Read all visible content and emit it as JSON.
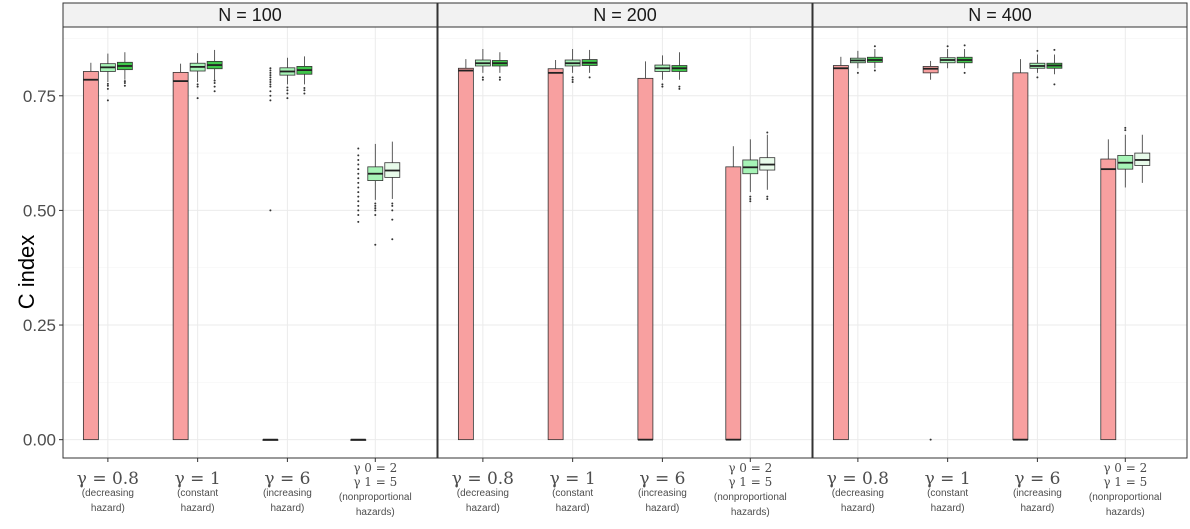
{
  "chart_data": {
    "type": "box",
    "ylabel": "C index",
    "ylim": [
      -0.04,
      0.9
    ],
    "yticks": [
      "0.00",
      "0.25",
      "0.50",
      "0.75"
    ],
    "ytick_values": [
      0,
      0.25,
      0.5,
      0.75
    ],
    "grid": true,
    "colors": {
      "cox": "#f8a0a0",
      "light_green": "#a6f4b6",
      "dark_green": "#3fc64a",
      "outline": "#333333"
    },
    "categories": [
      {
        "lines": [
          "γ = 0.8",
          "(decreasing",
          "hazard)"
        ]
      },
      {
        "lines": [
          "γ = 1",
          "(constant",
          "hazard)"
        ]
      },
      {
        "lines": [
          "γ = 6",
          "(increasing",
          "hazard)"
        ]
      },
      {
        "lines": [
          "γ 0 = 2",
          "γ 1 = 5",
          "(nonproportional",
          "hazards)"
        ]
      }
    ],
    "panels": [
      {
        "title": "N = 100",
        "groups": [
          {
            "boxes": [
              {
                "fill": "cox",
                "q1": 0,
                "median": 0.785,
                "q3": 0.803,
                "lo": 0,
                "hi": 0.822,
                "outliers": []
              },
              {
                "fill": "light_green",
                "q1": 0.803,
                "median": 0.812,
                "q3": 0.82,
                "lo": 0.78,
                "hi": 0.842,
                "outliers": [
                  0.74,
                  0.765,
                  0.772,
                  0.776
                ]
              },
              {
                "fill": "dark_green",
                "q1": 0.807,
                "median": 0.815,
                "q3": 0.823,
                "lo": 0.785,
                "hi": 0.845,
                "outliers": [
                  0.772,
                  0.778,
                  0.782
                ]
              }
            ]
          },
          {
            "boxes": [
              {
                "fill": "cox",
                "q1": 0,
                "median": 0.782,
                "q3": 0.801,
                "lo": 0,
                "hi": 0.82,
                "outliers": []
              },
              {
                "fill": "light_green",
                "q1": 0.804,
                "median": 0.813,
                "q3": 0.821,
                "lo": 0.78,
                "hi": 0.843,
                "outliers": [
                  0.745,
                  0.77,
                  0.775
                ]
              },
              {
                "fill": "dark_green",
                "q1": 0.809,
                "median": 0.817,
                "q3": 0.825,
                "lo": 0.785,
                "hi": 0.85,
                "outliers": [
                  0.76,
                  0.77,
                  0.778,
                  0.783
                ]
              }
            ]
          },
          {
            "boxes": [
              {
                "fill": "cox",
                "q1": 0,
                "median": 0,
                "q3": 0,
                "lo": 0,
                "hi": 0,
                "outliers": [
                  0.5,
                  0.74,
                  0.75,
                  0.76,
                  0.77,
                  0.775,
                  0.78,
                  0.785,
                  0.79,
                  0.795,
                  0.8,
                  0.805,
                  0.81
                ]
              },
              {
                "fill": "light_green",
                "q1": 0.795,
                "median": 0.803,
                "q3": 0.811,
                "lo": 0.775,
                "hi": 0.833,
                "outliers": [
                  0.745,
                  0.755,
                  0.762,
                  0.768
                ]
              },
              {
                "fill": "dark_green",
                "q1": 0.797,
                "median": 0.806,
                "q3": 0.814,
                "lo": 0.775,
                "hi": 0.836,
                "outliers": [
                  0.755,
                  0.762,
                  0.767
                ]
              }
            ]
          },
          {
            "boxes": [
              {
                "fill": "cox",
                "q1": 0,
                "median": 0,
                "q3": 0,
                "lo": 0,
                "hi": 0,
                "outliers": [
                  0.475,
                  0.49,
                  0.5,
                  0.51,
                  0.52,
                  0.53,
                  0.54,
                  0.55,
                  0.56,
                  0.57,
                  0.58,
                  0.59,
                  0.6,
                  0.61,
                  0.62,
                  0.635
                ]
              },
              {
                "fill": "light_green",
                "q1": 0.565,
                "median": 0.58,
                "q3": 0.595,
                "lo": 0.523,
                "hi": 0.645,
                "outliers": [
                  0.425,
                  0.49,
                  0.5,
                  0.505,
                  0.51,
                  0.515
                ]
              },
              {
                "fill": "dark_green_light",
                "q1": 0.572,
                "median": 0.587,
                "q3": 0.604,
                "lo": 0.525,
                "hi": 0.65,
                "outliers": [
                  0.437,
                  0.48,
                  0.5,
                  0.51,
                  0.515
                ]
              }
            ]
          }
        ]
      },
      {
        "title": "N = 200",
        "groups": [
          {
            "boxes": [
              {
                "fill": "cox",
                "q1": 0,
                "median": 0.805,
                "q3": 0.81,
                "lo": 0,
                "hi": 0.83,
                "outliers": []
              },
              {
                "fill": "light_green",
                "q1": 0.815,
                "median": 0.821,
                "q3": 0.828,
                "lo": 0.8,
                "hi": 0.852,
                "outliers": [
                  0.785,
                  0.79
                ]
              },
              {
                "fill": "dark_green",
                "q1": 0.815,
                "median": 0.821,
                "q3": 0.827,
                "lo": 0.8,
                "hi": 0.845,
                "outliers": [
                  0.785,
                  0.79
                ]
              }
            ]
          },
          {
            "boxes": [
              {
                "fill": "cox",
                "q1": 0,
                "median": 0.8,
                "q3": 0.809,
                "lo": 0,
                "hi": 0.828,
                "outliers": []
              },
              {
                "fill": "light_green",
                "q1": 0.815,
                "median": 0.821,
                "q3": 0.828,
                "lo": 0.8,
                "hi": 0.852,
                "outliers": [
                  0.78,
                  0.785,
                  0.79
                ]
              },
              {
                "fill": "dark_green",
                "q1": 0.816,
                "median": 0.822,
                "q3": 0.829,
                "lo": 0.8,
                "hi": 0.85,
                "outliers": [
                  0.79
                ]
              }
            ]
          },
          {
            "boxes": [
              {
                "fill": "cox",
                "q1": 0,
                "median": 0,
                "q3": 0.788,
                "lo": 0,
                "hi": 0.825,
                "outliers": []
              },
              {
                "fill": "light_green",
                "q1": 0.803,
                "median": 0.81,
                "q3": 0.817,
                "lo": 0.785,
                "hi": 0.838,
                "outliers": [
                  0.77,
                  0.775
                ]
              },
              {
                "fill": "dark_green",
                "q1": 0.803,
                "median": 0.81,
                "q3": 0.816,
                "lo": 0.785,
                "hi": 0.845,
                "outliers": [
                  0.765,
                  0.77
                ]
              }
            ]
          },
          {
            "boxes": [
              {
                "fill": "cox",
                "q1": 0,
                "median": 0,
                "q3": 0.595,
                "lo": 0,
                "hi": 0.64,
                "outliers": []
              },
              {
                "fill": "light_green",
                "q1": 0.58,
                "median": 0.594,
                "q3": 0.61,
                "lo": 0.54,
                "hi": 0.655,
                "outliers": [
                  0.52,
                  0.525,
                  0.53
                ]
              },
              {
                "fill": "dark_green_light",
                "q1": 0.588,
                "median": 0.6,
                "q3": 0.615,
                "lo": 0.545,
                "hi": 0.665,
                "outliers": [
                  0.525,
                  0.53,
                  0.67
                ]
              }
            ]
          }
        ]
      },
      {
        "title": "N = 400",
        "groups": [
          {
            "boxes": [
              {
                "fill": "cox",
                "q1": 0,
                "median": 0.81,
                "q3": 0.816,
                "lo": 0,
                "hi": 0.835,
                "outliers": []
              },
              {
                "fill": "light_green",
                "q1": 0.822,
                "median": 0.827,
                "q3": 0.832,
                "lo": 0.81,
                "hi": 0.848,
                "outliers": [
                  0.8
                ]
              },
              {
                "fill": "dark_green",
                "q1": 0.823,
                "median": 0.828,
                "q3": 0.834,
                "lo": 0.81,
                "hi": 0.852,
                "outliers": [
                  0.805,
                  0.858
                ]
              }
            ]
          },
          {
            "boxes": [
              {
                "fill": "cox",
                "q1": 0.8,
                "median": 0.809,
                "q3": 0.814,
                "lo": 0.785,
                "hi": 0.826,
                "outliers": [
                  0
                ]
              },
              {
                "fill": "light_green",
                "q1": 0.822,
                "median": 0.828,
                "q3": 0.833,
                "lo": 0.81,
                "hi": 0.852,
                "outliers": [
                  0.858
                ]
              },
              {
                "fill": "dark_green",
                "q1": 0.822,
                "median": 0.828,
                "q3": 0.834,
                "lo": 0.81,
                "hi": 0.852,
                "outliers": [
                  0.8,
                  0.86
                ]
              }
            ]
          },
          {
            "boxes": [
              {
                "fill": "cox",
                "q1": 0,
                "median": 0,
                "q3": 0.8,
                "lo": 0,
                "hi": 0.83,
                "outliers": []
              },
              {
                "fill": "light_green",
                "q1": 0.81,
                "median": 0.815,
                "q3": 0.821,
                "lo": 0.8,
                "hi": 0.84,
                "outliers": [
                  0.79,
                  0.848
                ]
              },
              {
                "fill": "dark_green",
                "q1": 0.81,
                "median": 0.816,
                "q3": 0.821,
                "lo": 0.797,
                "hi": 0.84,
                "outliers": [
                  0.775,
                  0.85
                ]
              }
            ]
          },
          {
            "boxes": [
              {
                "fill": "cox",
                "q1": 0,
                "median": 0.59,
                "q3": 0.612,
                "lo": 0,
                "hi": 0.655,
                "outliers": []
              },
              {
                "fill": "light_green",
                "q1": 0.59,
                "median": 0.604,
                "q3": 0.62,
                "lo": 0.55,
                "hi": 0.665,
                "outliers": [
                  0.675,
                  0.68
                ]
              },
              {
                "fill": "dark_green_light",
                "q1": 0.598,
                "median": 0.61,
                "q3": 0.625,
                "lo": 0.56,
                "hi": 0.665,
                "outliers": []
              }
            ]
          }
        ]
      }
    ]
  }
}
